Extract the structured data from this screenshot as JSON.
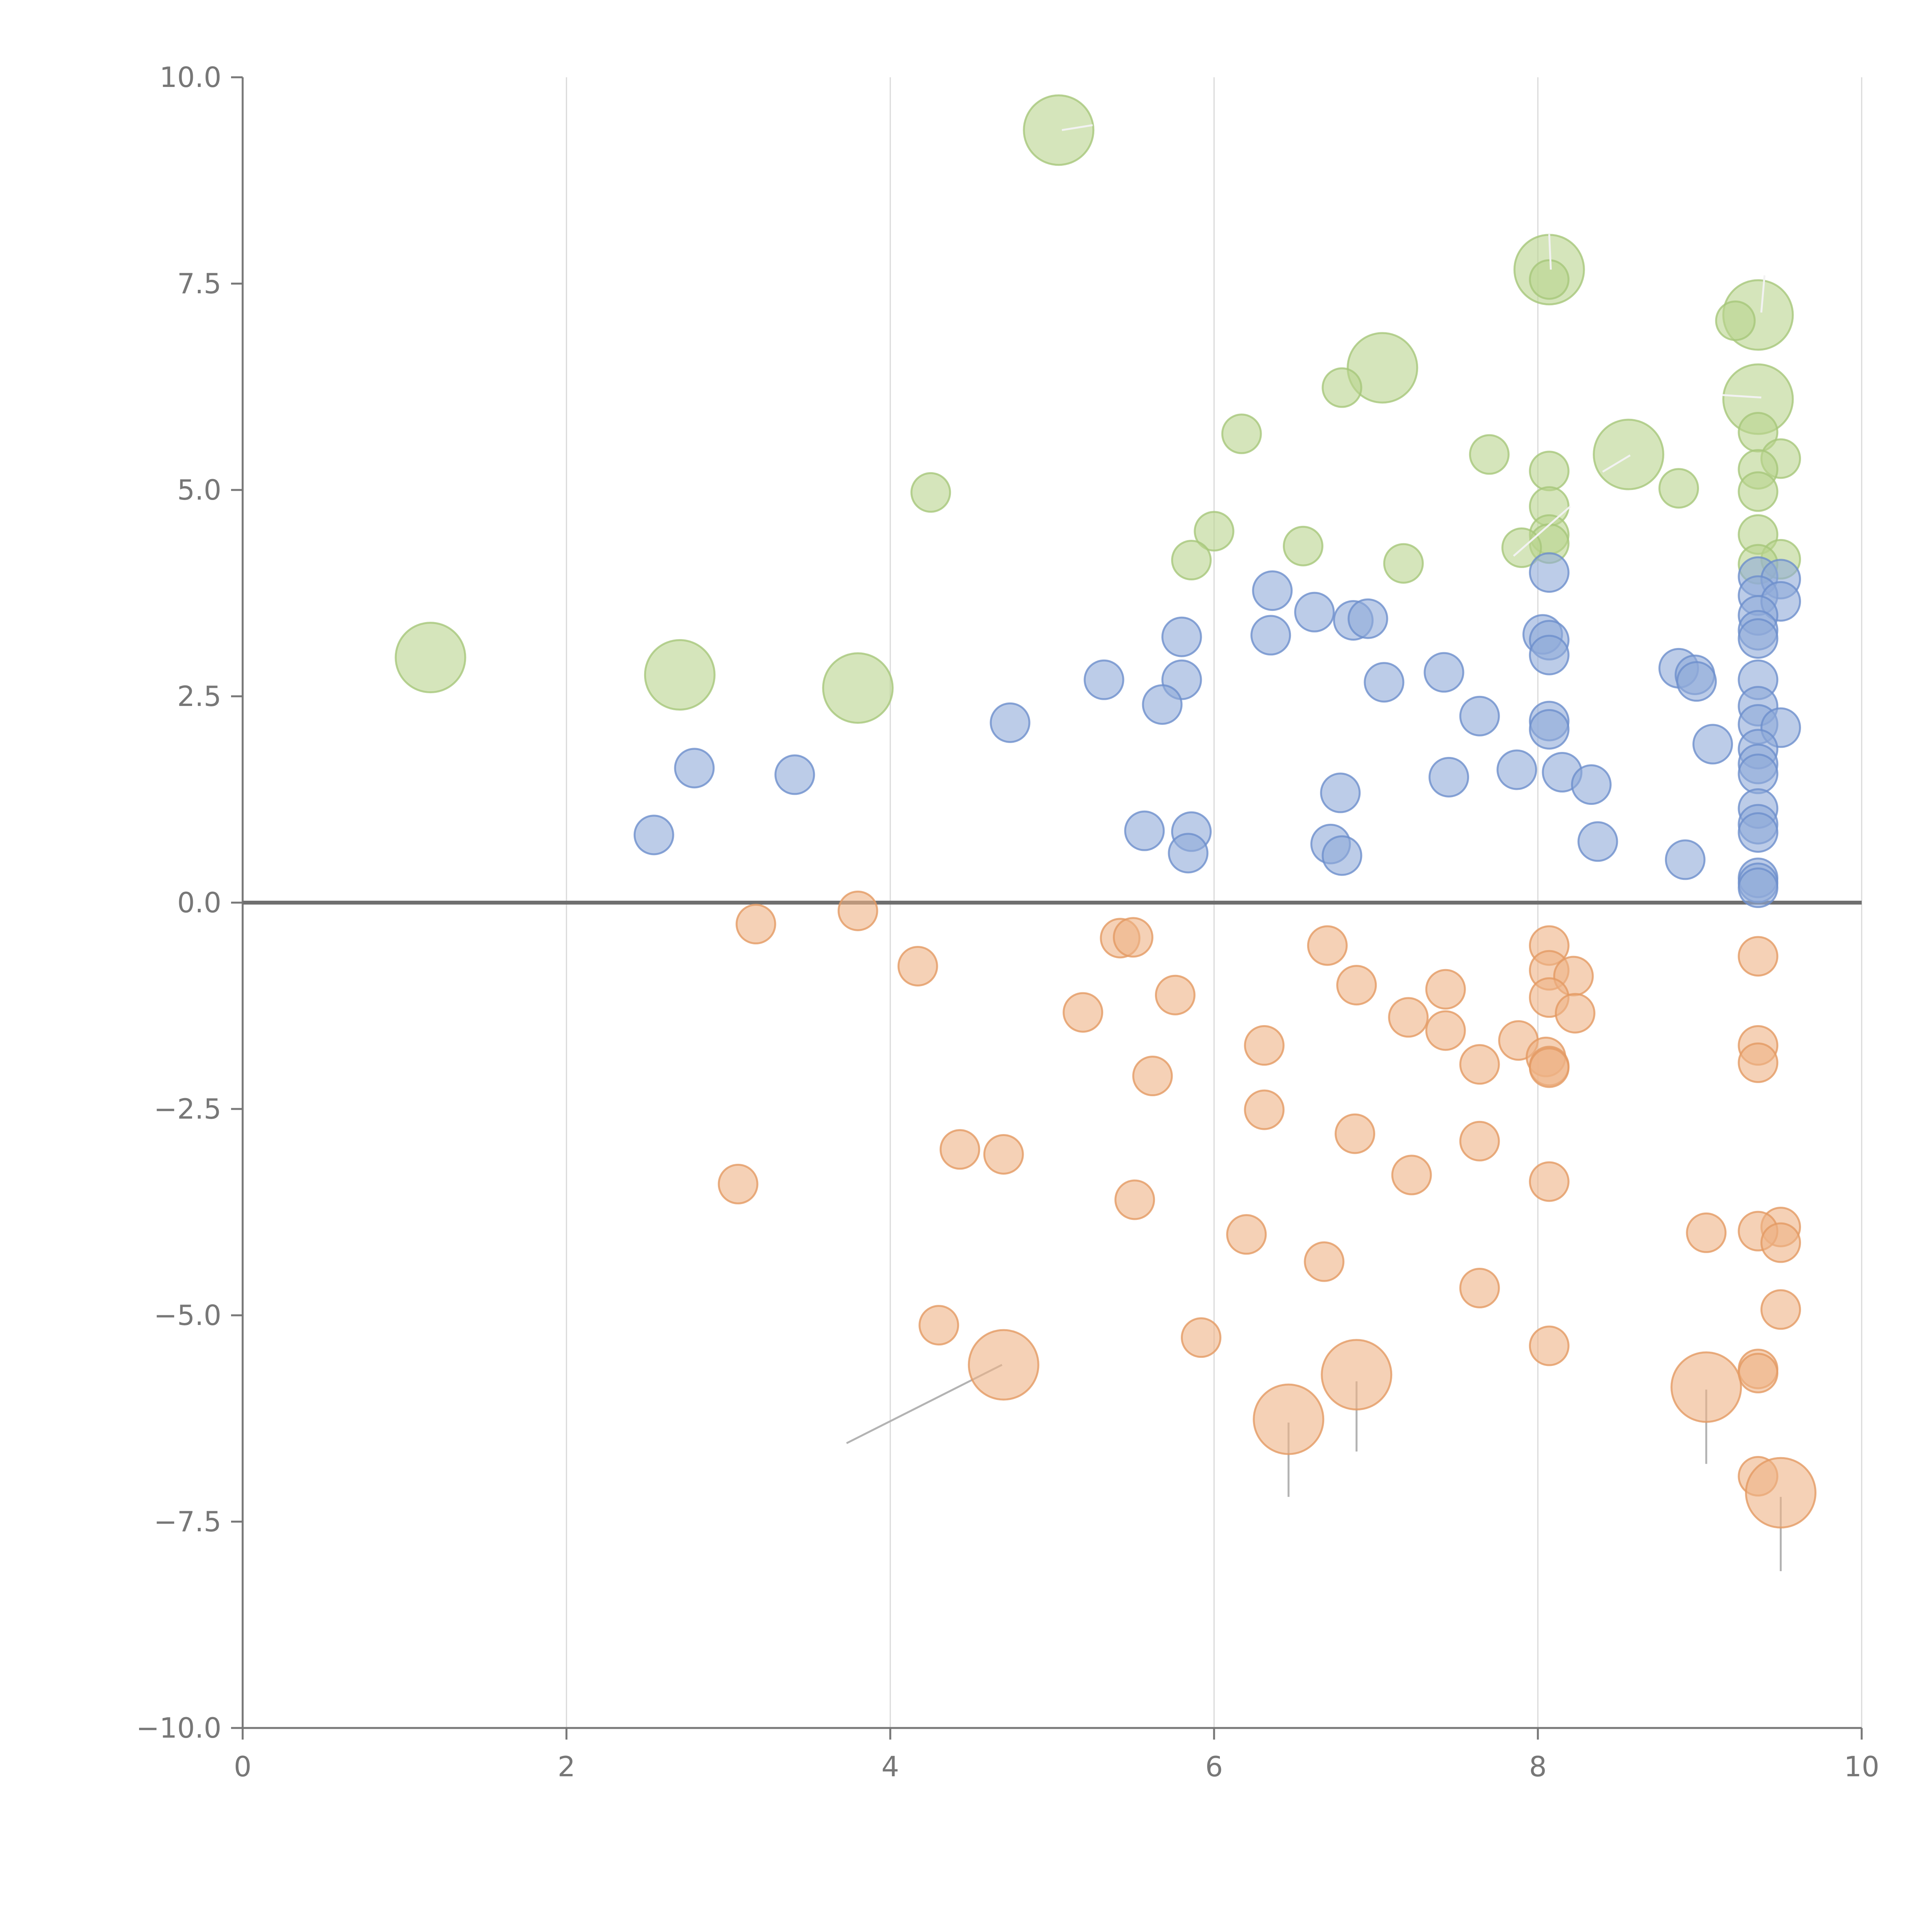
{
  "chart_data": {
    "type": "scatter",
    "title": "",
    "xlabel": "",
    "ylabel": "",
    "xlim": [
      0,
      10
    ],
    "ylim": [
      -10,
      10
    ],
    "grid": {
      "x": true,
      "y": false
    },
    "zero_line": 0,
    "x_ticks": [
      "0",
      "2",
      "4",
      "6",
      "8",
      "10"
    ],
    "x_tick_values": [
      0,
      2,
      4,
      6,
      8,
      10
    ],
    "y_ticks": [
      "−10.0",
      "−7.5",
      "−5.0",
      "−2.5",
      "0.0",
      "2.5",
      "5.0",
      "7.5",
      "10.0"
    ],
    "y_tick_values": [
      -10,
      -7.5,
      -5,
      -2.5,
      0,
      2.5,
      5,
      7.5,
      10
    ],
    "colors": {
      "green": {
        "fill": "#b9d38d",
        "stroke": "#a6c77a"
      },
      "blue": {
        "fill": "#8faad8",
        "stroke": "#6d8fcc"
      },
      "orange": {
        "fill": "#eeb386",
        "stroke": "#e39a63"
      }
    },
    "size_scale": {
      "small": 1,
      "large": 2
    },
    "series": [
      {
        "name": "green",
        "color": "green",
        "points": [
          [
            5.04,
            9.36,
            2
          ],
          [
            8.07,
            7.67,
            2
          ],
          [
            9.36,
            7.12,
            2
          ],
          [
            7.04,
            6.48,
            2
          ],
          [
            9.36,
            6.1,
            2
          ],
          [
            8.56,
            5.43,
            2
          ],
          [
            1.16,
            2.97,
            2
          ],
          [
            2.7,
            2.76,
            2
          ],
          [
            3.8,
            2.6,
            2
          ],
          [
            8.07,
            7.55,
            1
          ],
          [
            9.22,
            7.05,
            1
          ],
          [
            6.79,
            6.24,
            1
          ],
          [
            6.17,
            5.68,
            1
          ],
          [
            9.36,
            5.7,
            1
          ],
          [
            7.7,
            5.43,
            1
          ],
          [
            9.5,
            5.38,
            1
          ],
          [
            9.36,
            5.25,
            1
          ],
          [
            8.07,
            5.23,
            1
          ],
          [
            8.87,
            5.02,
            1
          ],
          [
            9.36,
            4.98,
            1
          ],
          [
            4.25,
            4.97,
            1
          ],
          [
            8.07,
            4.8,
            1
          ],
          [
            6.0,
            4.5,
            1
          ],
          [
            9.36,
            4.46,
            1
          ],
          [
            8.07,
            4.46,
            1
          ],
          [
            8.07,
            4.35,
            1
          ],
          [
            6.55,
            4.32,
            1
          ],
          [
            7.9,
            4.3,
            1
          ],
          [
            9.5,
            4.16,
            1
          ],
          [
            5.86,
            4.15,
            1
          ],
          [
            7.17,
            4.11,
            1
          ],
          [
            9.36,
            4.1,
            1
          ]
        ]
      },
      {
        "name": "blue",
        "color": "blue",
        "points": [
          [
            8.07,
            4.0,
            1
          ],
          [
            9.36,
            3.95,
            1
          ],
          [
            9.5,
            3.92,
            1
          ],
          [
            6.36,
            3.78,
            1
          ],
          [
            9.36,
            3.72,
            1
          ],
          [
            9.5,
            3.65,
            1
          ],
          [
            6.62,
            3.52,
            1
          ],
          [
            9.36,
            3.48,
            1
          ],
          [
            6.86,
            3.42,
            1
          ],
          [
            6.95,
            3.44,
            1
          ],
          [
            9.36,
            3.3,
            1
          ],
          [
            8.03,
            3.25,
            1
          ],
          [
            6.35,
            3.24,
            1
          ],
          [
            5.8,
            3.22,
            1
          ],
          [
            8.07,
            3.18,
            1
          ],
          [
            9.36,
            3.2,
            1
          ],
          [
            8.07,
            3.0,
            1
          ],
          [
            8.87,
            2.84,
            1
          ],
          [
            7.42,
            2.79,
            1
          ],
          [
            8.97,
            2.76,
            1
          ],
          [
            5.32,
            2.7,
            1
          ],
          [
            9.36,
            2.7,
            1
          ],
          [
            5.8,
            2.7,
            1
          ],
          [
            8.98,
            2.68,
            1
          ],
          [
            7.05,
            2.67,
            1
          ],
          [
            9.36,
            2.38,
            1
          ],
          [
            5.68,
            2.4,
            1
          ],
          [
            7.64,
            2.26,
            1
          ],
          [
            8.07,
            2.2,
            1
          ],
          [
            4.74,
            2.18,
            1
          ],
          [
            9.36,
            2.16,
            1
          ],
          [
            9.5,
            2.12,
            1
          ],
          [
            8.07,
            2.1,
            1
          ],
          [
            9.08,
            1.92,
            1
          ],
          [
            9.36,
            1.86,
            1
          ],
          [
            9.36,
            1.68,
            1
          ],
          [
            2.79,
            1.63,
            1
          ],
          [
            7.87,
            1.61,
            1
          ],
          [
            8.15,
            1.58,
            1
          ],
          [
            9.36,
            1.56,
            1
          ],
          [
            3.41,
            1.55,
            1
          ],
          [
            7.45,
            1.52,
            1
          ],
          [
            8.33,
            1.43,
            1
          ],
          [
            6.78,
            1.33,
            1
          ],
          [
            9.36,
            1.14,
            1
          ],
          [
            9.36,
            0.95,
            1
          ],
          [
            5.57,
            0.87,
            1
          ],
          [
            5.86,
            0.86,
            1
          ],
          [
            9.36,
            0.85,
            1
          ],
          [
            2.54,
            0.82,
            1
          ],
          [
            8.37,
            0.74,
            1
          ],
          [
            6.72,
            0.71,
            1
          ],
          [
            5.84,
            0.6,
            1
          ],
          [
            6.79,
            0.57,
            1
          ],
          [
            8.91,
            0.52,
            1
          ],
          [
            9.36,
            0.3,
            1
          ],
          [
            9.36,
            0.24,
            1
          ],
          [
            9.36,
            0.18,
            1
          ]
        ]
      },
      {
        "name": "orange",
        "color": "orange",
        "points": [
          [
            3.8,
            -0.1,
            1
          ],
          [
            3.17,
            -0.26,
            1
          ],
          [
            5.42,
            -0.43,
            1
          ],
          [
            5.5,
            -0.42,
            1
          ],
          [
            6.7,
            -0.52,
            1
          ],
          [
            8.07,
            -0.52,
            1
          ],
          [
            9.36,
            -0.65,
            1
          ],
          [
            4.17,
            -0.77,
            1
          ],
          [
            8.07,
            -0.82,
            1
          ],
          [
            8.22,
            -0.89,
            1
          ],
          [
            6.88,
            -1.0,
            1
          ],
          [
            7.43,
            -1.05,
            1
          ],
          [
            5.76,
            -1.12,
            1
          ],
          [
            8.07,
            -1.15,
            1
          ],
          [
            5.19,
            -1.33,
            1
          ],
          [
            8.23,
            -1.34,
            1
          ],
          [
            7.2,
            -1.39,
            1
          ],
          [
            7.43,
            -1.55,
            1
          ],
          [
            7.88,
            -1.67,
            1
          ],
          [
            6.31,
            -1.73,
            1
          ],
          [
            9.36,
            -1.73,
            1
          ],
          [
            8.05,
            -1.87,
            1
          ],
          [
            9.36,
            -1.94,
            1
          ],
          [
            7.64,
            -1.96,
            1
          ],
          [
            8.07,
            -1.98,
            1
          ],
          [
            8.07,
            -2.0,
            1
          ],
          [
            5.62,
            -2.1,
            1
          ],
          [
            6.31,
            -2.51,
            1
          ],
          [
            6.87,
            -2.8,
            1
          ],
          [
            7.64,
            -2.89,
            1
          ],
          [
            4.43,
            -2.99,
            1
          ],
          [
            4.7,
            -3.05,
            1
          ],
          [
            7.22,
            -3.3,
            1
          ],
          [
            8.07,
            -3.38,
            1
          ],
          [
            3.06,
            -3.41,
            1
          ],
          [
            5.51,
            -3.6,
            1
          ],
          [
            9.5,
            -3.93,
            1
          ],
          [
            9.36,
            -3.98,
            1
          ],
          [
            9.04,
            -4.0,
            1
          ],
          [
            6.2,
            -4.02,
            1
          ],
          [
            9.5,
            -4.12,
            1
          ],
          [
            6.68,
            -4.35,
            1
          ],
          [
            7.64,
            -4.67,
            1
          ],
          [
            9.5,
            -4.93,
            1
          ],
          [
            4.3,
            -5.12,
            1
          ],
          [
            5.92,
            -5.27,
            1
          ],
          [
            8.07,
            -5.37,
            1
          ],
          [
            9.36,
            -5.65,
            1
          ],
          [
            9.36,
            -5.7,
            1
          ],
          [
            9.36,
            -6.95,
            1
          ],
          [
            4.7,
            -5.6,
            2
          ],
          [
            6.88,
            -5.72,
            2
          ],
          [
            6.46,
            -6.26,
            2
          ],
          [
            9.04,
            -5.87,
            2
          ],
          [
            9.5,
            -7.15,
            2
          ]
        ]
      }
    ],
    "annotation_lines": [
      {
        "style": "dark",
        "from": [
          4.69,
          -5.6
        ],
        "to": [
          3.73,
          -6.55
        ]
      },
      {
        "style": "dark",
        "from": [
          6.46,
          -6.3
        ],
        "to": [
          6.46,
          -7.2
        ]
      },
      {
        "style": "dark",
        "from": [
          6.88,
          -5.8
        ],
        "to": [
          6.88,
          -6.65
        ]
      },
      {
        "style": "dark",
        "from": [
          9.04,
          -5.9
        ],
        "to": [
          9.04,
          -6.8
        ]
      },
      {
        "style": "dark",
        "from": [
          9.5,
          -7.2
        ],
        "to": [
          9.5,
          -8.1
        ]
      },
      {
        "style": "light",
        "from": [
          5.06,
          9.36
        ],
        "to": [
          5.25,
          9.42
        ]
      },
      {
        "style": "light",
        "from": [
          8.08,
          7.67
        ],
        "to": [
          8.07,
          8.1
        ]
      },
      {
        "style": "light",
        "from": [
          9.38,
          7.15
        ],
        "to": [
          9.4,
          7.6
        ]
      },
      {
        "style": "light",
        "from": [
          9.38,
          6.12
        ],
        "to": [
          9.14,
          6.15
        ]
      },
      {
        "style": "light",
        "from": [
          8.57,
          5.42
        ],
        "to": [
          8.4,
          5.22
        ]
      },
      {
        "style": "light",
        "from": [
          8.2,
          4.8
        ],
        "to": [
          7.85,
          4.2
        ]
      }
    ]
  }
}
